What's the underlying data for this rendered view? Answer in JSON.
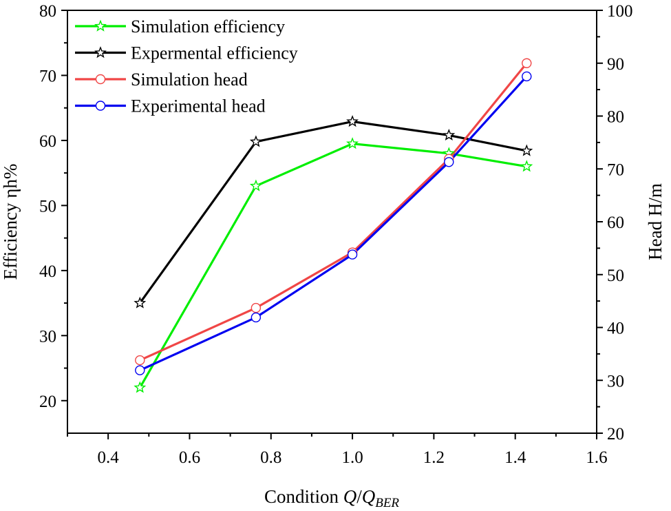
{
  "chart_data": {
    "type": "line",
    "xlabel": {
      "prefix": "Condition ",
      "var": "Q",
      "slash": "/",
      "sub_base": "Q",
      "subscript": "BER"
    },
    "ylabel_left": "Efficiency ηh%",
    "ylabel_right": "Head H/m",
    "xlim": [
      0.3,
      1.6
    ],
    "ylim_left": [
      15,
      80
    ],
    "ylim_right": [
      20,
      100
    ],
    "x_ticks": [
      0.4,
      0.6,
      0.8,
      1.0,
      1.2,
      1.4,
      1.6
    ],
    "x_tick_labels": [
      "0.4",
      "0.6",
      "0.8",
      "1.0",
      "1.2",
      "1.4",
      "1.6"
    ],
    "y_left_ticks": [
      20,
      30,
      40,
      50,
      60,
      70,
      80
    ],
    "y_left_tick_labels": [
      "20",
      "30",
      "40",
      "50",
      "60",
      "70",
      "80"
    ],
    "y_right_ticks": [
      20,
      30,
      40,
      50,
      60,
      70,
      80,
      90,
      100
    ],
    "y_right_tick_labels": [
      "20",
      "30",
      "40",
      "50",
      "60",
      "70",
      "80",
      "90",
      "100"
    ],
    "legend_position": "top-left",
    "series": [
      {
        "name": "Simulation efficiency",
        "axis": "left",
        "marker": "star",
        "color": "#00ee00",
        "x": [
          0.478,
          0.763,
          1.0,
          1.237,
          1.428
        ],
        "values": [
          22.0,
          53.0,
          59.5,
          58.0,
          56.0
        ]
      },
      {
        "name": "Expermental efficiency",
        "axis": "left",
        "marker": "star",
        "color": "#000000",
        "x": [
          0.478,
          0.763,
          1.0,
          1.237,
          1.428
        ],
        "values": [
          35.0,
          59.8,
          62.9,
          60.8,
          58.4
        ]
      },
      {
        "name": "Simulation head",
        "axis": "right",
        "marker": "circle",
        "color": "#f04646",
        "x": [
          0.478,
          0.763,
          1.0,
          1.237,
          1.428
        ],
        "values": [
          33.8,
          43.7,
          54.2,
          71.9,
          90.0
        ]
      },
      {
        "name": "Experimental head",
        "axis": "right",
        "marker": "circle",
        "color": "#0000f0",
        "x": [
          0.478,
          0.763,
          1.0,
          1.237,
          1.428
        ],
        "values": [
          31.9,
          41.9,
          53.8,
          71.3,
          87.5
        ]
      }
    ]
  }
}
